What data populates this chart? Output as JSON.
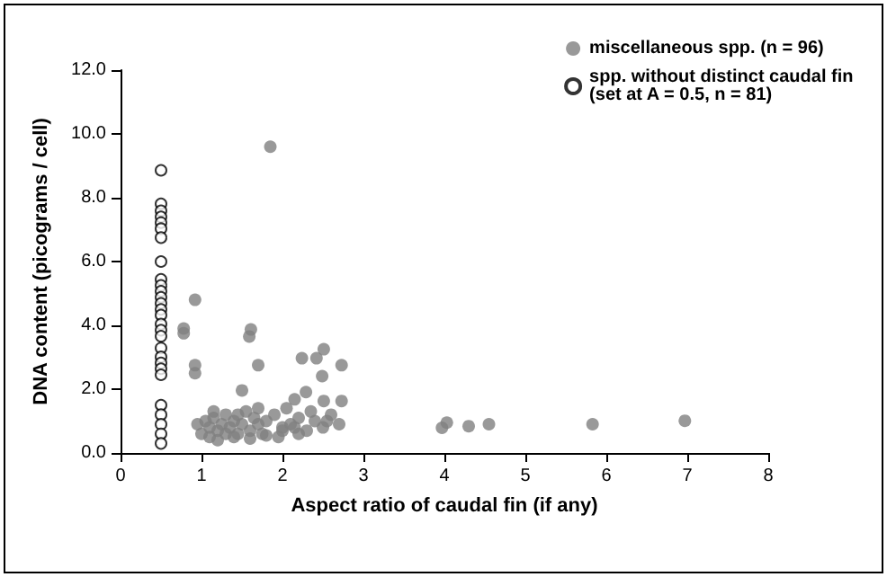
{
  "chart_data": {
    "type": "scatter",
    "xlabel": "Aspect ratio of caudal fin (if any)",
    "ylabel": "DNA content (picograms / cell)",
    "xlim": [
      0,
      8
    ],
    "xticks": [
      0,
      1,
      2,
      3,
      4,
      5,
      6,
      7,
      8
    ],
    "ylim": [
      0,
      12
    ],
    "yticks": [
      {
        "value": 0,
        "label": "0.0"
      },
      {
        "value": 2,
        "label": "2.0"
      },
      {
        "value": 4,
        "label": "4.0"
      },
      {
        "value": 6,
        "label": "6.0"
      },
      {
        "value": 8,
        "label": "8.0"
      },
      {
        "value": 10,
        "label": "10.0"
      },
      {
        "value": 12,
        "label": "12.0"
      }
    ],
    "grid": false,
    "legend": "top right",
    "marker": "circle",
    "series": [
      {
        "name": "miscellaneous spp. (n = 96)",
        "color": "#808080",
        "x": [
          1.85,
          0.92,
          0.78,
          0.78,
          0.92,
          0.92,
          1.61,
          1.59,
          1.7,
          1.5,
          2.24,
          2.42,
          2.51,
          2.73,
          2.49,
          2.29,
          2.51,
          2.73,
          2.15,
          3.97,
          4.03,
          4.3,
          4.55,
          5.83,
          6.97,
          0.95,
          1.05,
          1.1,
          1.15,
          1.2,
          1.25,
          1.3,
          1.35,
          1.4,
          1.45,
          1.5,
          1.55,
          1.6,
          1.65,
          1.7,
          1.75,
          1.8,
          1.9,
          2.0,
          2.05,
          2.1,
          2.2,
          2.3,
          2.4,
          2.5,
          2.6,
          2.7,
          1.1,
          1.2,
          1.3,
          1.4,
          1.6,
          1.8,
          2.0,
          2.2,
          2.35,
          1.0,
          1.15,
          1.45,
          1.7,
          1.95,
          2.15,
          2.55
        ],
        "values": [
          9.6,
          4.8,
          3.9,
          3.75,
          2.75,
          2.5,
          3.87,
          3.65,
          2.75,
          1.96,
          2.97,
          2.97,
          3.25,
          2.75,
          2.41,
          1.91,
          1.63,
          1.63,
          1.68,
          0.79,
          0.95,
          0.84,
          0.9,
          0.9,
          1.01,
          0.9,
          1.0,
          0.8,
          1.1,
          0.7,
          0.9,
          1.2,
          0.8,
          1.0,
          0.6,
          0.9,
          1.3,
          0.7,
          1.1,
          0.9,
          0.6,
          1.0,
          1.2,
          0.8,
          1.4,
          0.9,
          1.1,
          0.7,
          1.0,
          0.8,
          1.2,
          0.9,
          0.5,
          0.4,
          0.6,
          0.5,
          0.45,
          0.55,
          0.7,
          0.6,
          1.3,
          0.6,
          1.3,
          1.2,
          1.4,
          0.5,
          0.8,
          1.0
        ]
      },
      {
        "name": "spp. without distinct caudal fin (set at A = 0.5, n = 81)",
        "color": "#000000",
        "x": [
          0.5,
          0.5,
          0.5,
          0.5,
          0.5,
          0.5,
          0.5,
          0.5,
          0.5,
          0.5,
          0.5,
          0.5,
          0.5,
          0.5,
          0.5,
          0.5,
          0.5,
          0.5,
          0.5,
          0.5,
          0.5,
          0.5,
          0.5,
          0.5,
          0.5,
          0.5,
          0.5,
          0.5
        ],
        "values": [
          8.86,
          7.81,
          7.59,
          7.4,
          7.22,
          7.03,
          6.75,
          6.0,
          5.44,
          5.25,
          5.07,
          4.88,
          4.69,
          4.5,
          4.32,
          4.04,
          3.85,
          3.66,
          3.29,
          3.01,
          2.82,
          2.64,
          2.45,
          1.5,
          1.2,
          0.9,
          0.6,
          0.3
        ]
      }
    ]
  }
}
